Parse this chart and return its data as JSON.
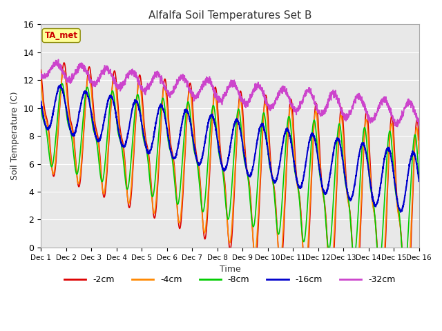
{
  "title": "Alfalfa Soil Temperatures Set B",
  "xlabel": "Time",
  "ylabel": "Soil Temperature (C)",
  "ylim": [
    0,
    16
  ],
  "xlim": [
    0,
    15
  ],
  "bg_color": "#e8e8e8",
  "series": {
    "-2cm": {
      "color": "#dd0000",
      "lw": 1.2
    },
    "-4cm": {
      "color": "#ff8800",
      "lw": 1.2
    },
    "-8cm": {
      "color": "#00cc00",
      "lw": 1.2
    },
    "-16cm": {
      "color": "#0000cc",
      "lw": 1.5
    },
    "-32cm": {
      "color": "#cc44cc",
      "lw": 1.2
    }
  },
  "legend_labels": [
    "-2cm",
    "-4cm",
    "-8cm",
    "-16cm",
    "-32cm"
  ],
  "ta_met_color": "#cc0000",
  "ta_met_box_color": "#ffff99",
  "ta_met_box_edge": "#888800",
  "xtick_labels": [
    "Dec 1",
    "Dec 2",
    "Dec 3",
    "Dec 4",
    "Dec 5",
    "Dec 6",
    "Dec 7",
    "Dec 8",
    "Dec 9",
    "Dec 10",
    "Dec 11",
    "Dec 12",
    "Dec 13",
    "Dec 14",
    "Dec 15",
    "Dec 16"
  ],
  "ytick_labels": [
    "0",
    "2",
    "4",
    "6",
    "8",
    "10",
    "12",
    "14",
    "16"
  ]
}
